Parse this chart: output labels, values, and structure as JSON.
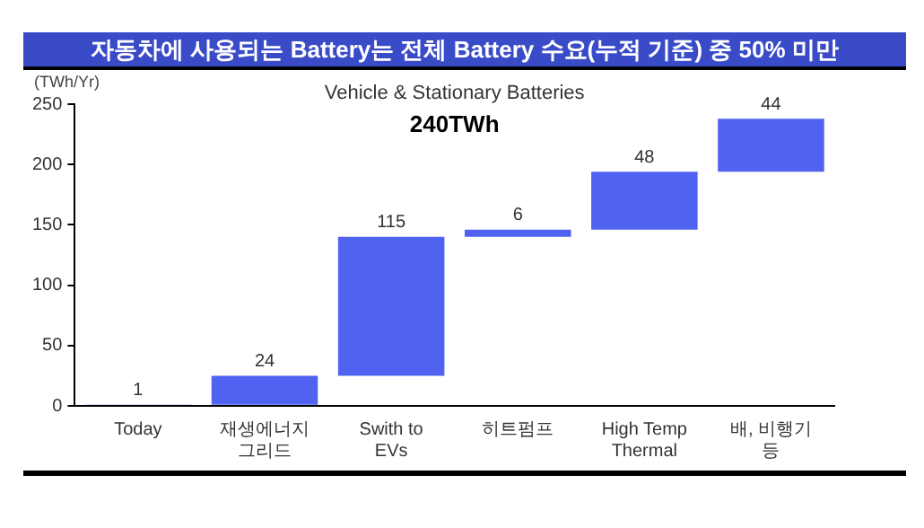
{
  "chart_data": {
    "type": "bar",
    "title": "자동차에 사용되는 Battery는 전체 Battery 수요(누적 기준) 중 50% 미만",
    "subtitle": "Vehicle & Stationary Batteries",
    "annotations": [
      "240TWh"
    ],
    "ylabel": "(TWh/Yr)",
    "categories": [
      "Today",
      "재생에너지 그리드",
      "Swith to EVs",
      "히트펌프",
      "High Temp Thermal",
      "배, 비행기 등"
    ],
    "values": [
      1,
      24,
      115,
      6,
      48,
      44
    ],
    "base": [
      0,
      1,
      25,
      140,
      146,
      194
    ],
    "color": "#4f63f0",
    "data_labels": true,
    "grid": false,
    "legend": false,
    "ylim": [
      0,
      250
    ],
    "yticks": [
      0,
      50,
      100,
      150,
      200,
      250
    ]
  }
}
